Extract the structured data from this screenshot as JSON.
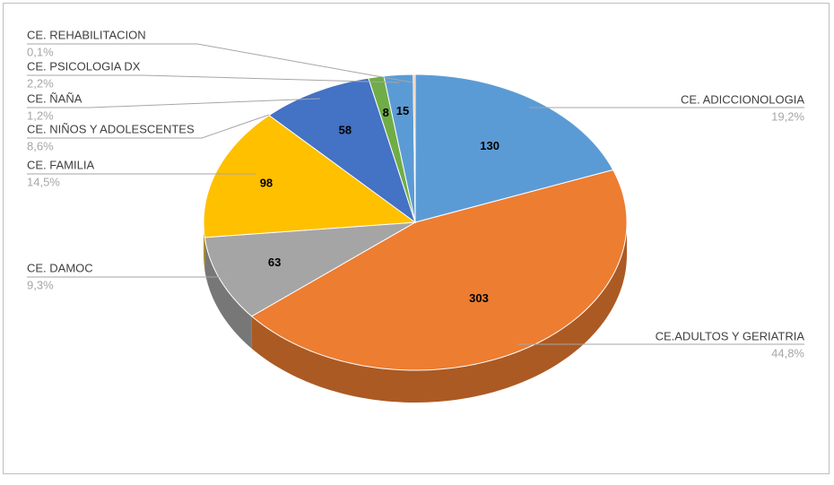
{
  "chart_data": {
    "type": "pie3d",
    "categories": [
      "CE. ADICCIONOLOGIA",
      "CE.ADULTOS Y GERIATRIA",
      "CE. DAMOC",
      "CE. FAMILIA",
      "CE. NIÑOS Y ADOLESCENTES",
      "CE. ÑAÑA",
      "CE. PSICOLOGIA DX",
      "CE. REHABILITACION"
    ],
    "values": [
      130,
      303,
      63,
      98,
      58,
      8,
      15,
      1
    ],
    "percent_labels": [
      "19,2%",
      "44,8%",
      "9,3%",
      "14,5%",
      "8,6%",
      "1,2%",
      "2,2%",
      "0,1%"
    ],
    "colors": [
      "#5b9bd5",
      "#ed7d31",
      "#a5a5a5",
      "#ffc000",
      "#4472c4",
      "#70ad47",
      "#5b9bd5",
      "#f4b183"
    ]
  }
}
